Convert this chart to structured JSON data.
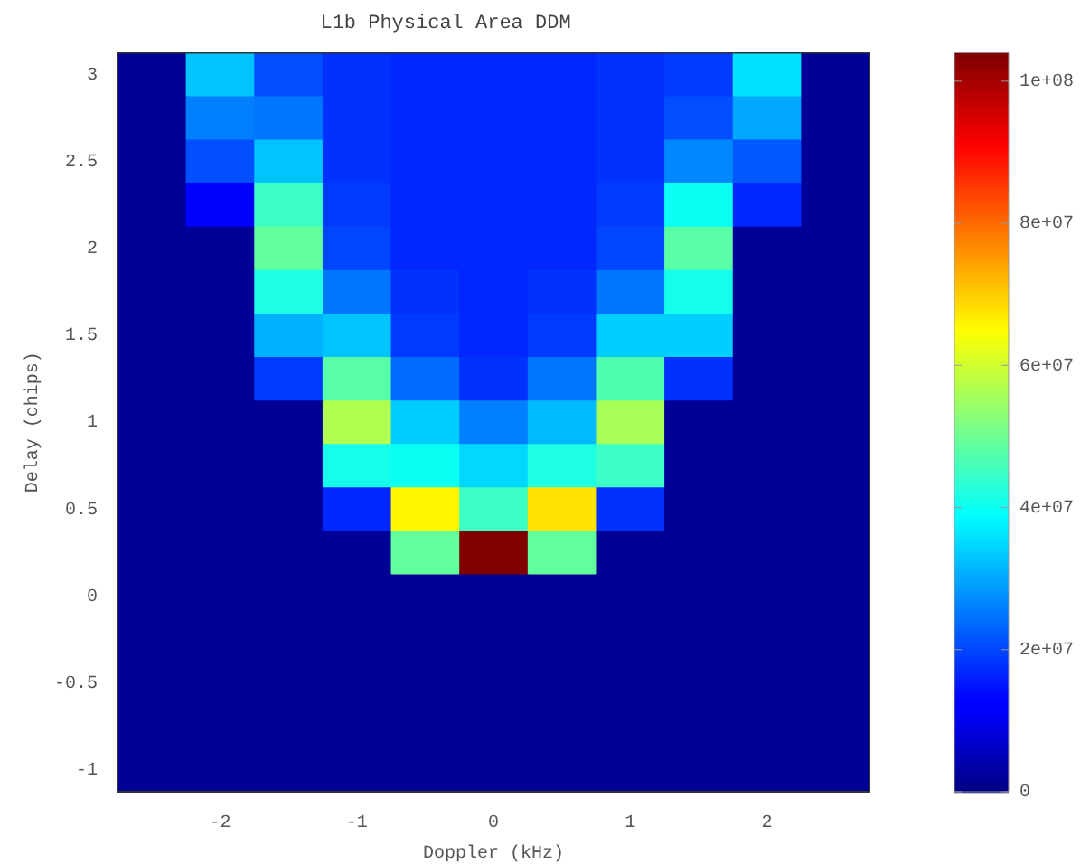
{
  "chart_data": {
    "type": "heatmap",
    "title": "L1b Physical Area DDM",
    "xlabel": "Doppler (kHz)",
    "ylabel": "Delay (chips)",
    "x": [
      -2.5,
      -2,
      -1.5,
      -1,
      -0.5,
      0,
      0.5,
      1,
      1.5,
      2,
      2.5
    ],
    "y": [
      3,
      2.75,
      2.5,
      2.25,
      2,
      1.75,
      1.5,
      1.25,
      1,
      0.75,
      0.5,
      0.25,
      0,
      -0.25,
      -0.5,
      -0.75,
      -1
    ],
    "xlim": [
      -2.75,
      2.75
    ],
    "xticks": [
      -2,
      -1,
      0,
      1,
      2
    ],
    "ylim": [
      -1.125,
      3.125
    ],
    "yticks": [
      -1,
      -0.5,
      0,
      0.5,
      1,
      1.5,
      2,
      2.5,
      3
    ],
    "clim": [
      0,
      104000000
    ],
    "cticks": [
      {
        "value": 0,
        "label": "0"
      },
      {
        "value": 20000000,
        "label": "2e+07"
      },
      {
        "value": 40000000,
        "label": "4e+07"
      },
      {
        "value": 60000000,
        "label": "6e+07"
      },
      {
        "value": 80000000,
        "label": "8e+07"
      },
      {
        "value": 100000000,
        "label": "1e+08"
      }
    ],
    "cells": [
      [
        2000000,
        33000000,
        21000000,
        18000000,
        17000000,
        17000000,
        17000000,
        18000000,
        19000000,
        36000000,
        2000000
      ],
      [
        2000000,
        26000000,
        25000000,
        18000000,
        17000000,
        17000000,
        17000000,
        18000000,
        21000000,
        30000000,
        2000000
      ],
      [
        2000000,
        21000000,
        33000000,
        18000000,
        17000000,
        17000000,
        17000000,
        18000000,
        27000000,
        22000000,
        2000000
      ],
      [
        2000000,
        12000000,
        45000000,
        19000000,
        17000000,
        17000000,
        17000000,
        19000000,
        40000000,
        17000000,
        2000000
      ],
      [
        2000000,
        2000000,
        49000000,
        20000000,
        17000000,
        17000000,
        17000000,
        20000000,
        48000000,
        2000000,
        2000000
      ],
      [
        2000000,
        2000000,
        42000000,
        25000000,
        18000000,
        17000000,
        18000000,
        25000000,
        41000000,
        2000000,
        2000000
      ],
      [
        2000000,
        2000000,
        31000000,
        33000000,
        19000000,
        17000000,
        19000000,
        34000000,
        34000000,
        2000000,
        2000000
      ],
      [
        2000000,
        2000000,
        19000000,
        48000000,
        24000000,
        18000000,
        25000000,
        47000000,
        18000000,
        2000000,
        2000000
      ],
      [
        2000000,
        2000000,
        2000000,
        57000000,
        34000000,
        26000000,
        32000000,
        56000000,
        2000000,
        2000000,
        2000000
      ],
      [
        2000000,
        2000000,
        2000000,
        41000000,
        40000000,
        35000000,
        42000000,
        45000000,
        2000000,
        2000000,
        2000000
      ],
      [
        2000000,
        2000000,
        2000000,
        17000000,
        66000000,
        45000000,
        68000000,
        18000000,
        2000000,
        2000000,
        2000000
      ],
      [
        2000000,
        2000000,
        2000000,
        2000000,
        49000000,
        104000000,
        49000000,
        2000000,
        2000000,
        2000000,
        2000000
      ],
      [
        2000000,
        2000000,
        2000000,
        2000000,
        2000000,
        2000000,
        2000000,
        2000000,
        2000000,
        2000000,
        2000000
      ],
      [
        2000000,
        2000000,
        2000000,
        2000000,
        2000000,
        2000000,
        2000000,
        2000000,
        2000000,
        2000000,
        2000000
      ],
      [
        2000000,
        2000000,
        2000000,
        2000000,
        2000000,
        2000000,
        2000000,
        2000000,
        2000000,
        2000000,
        2000000
      ],
      [
        2000000,
        2000000,
        2000000,
        2000000,
        2000000,
        2000000,
        2000000,
        2000000,
        2000000,
        2000000,
        2000000
      ],
      [
        2000000,
        2000000,
        2000000,
        2000000,
        2000000,
        2000000,
        2000000,
        2000000,
        2000000,
        2000000,
        2000000
      ]
    ]
  }
}
